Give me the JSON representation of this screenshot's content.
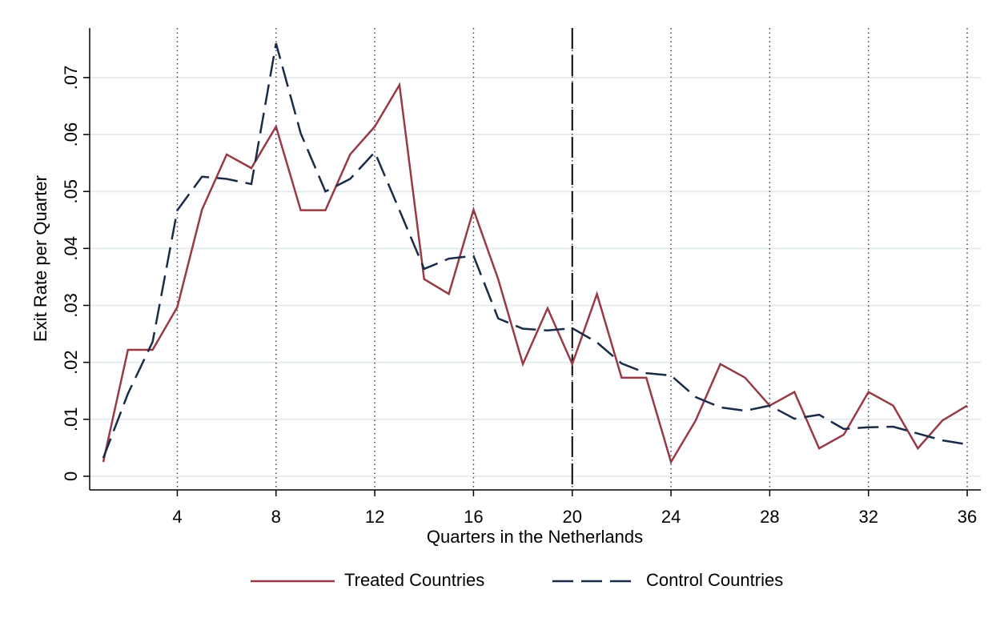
{
  "chart_data": {
    "type": "line",
    "x_label": "Quarters in the Netherlands",
    "y_label": "Exit Rate per Quarter",
    "x": [
      1,
      2,
      3,
      4,
      5,
      6,
      7,
      8,
      9,
      10,
      11,
      12,
      13,
      14,
      15,
      16,
      17,
      18,
      19,
      20,
      21,
      22,
      23,
      24,
      25,
      26,
      27,
      28,
      29,
      30,
      31,
      32,
      33,
      34,
      35,
      36
    ],
    "series": [
      {
        "name": "Treated Countries",
        "color": "#973a45",
        "dash": false,
        "values": [
          0.0025,
          0.0222,
          0.0222,
          0.0297,
          0.0468,
          0.0565,
          0.0541,
          0.0614,
          0.0467,
          0.0467,
          0.0565,
          0.0614,
          0.0687,
          0.0346,
          0.032,
          0.0468,
          0.0346,
          0.0197,
          0.0295,
          0.0197,
          0.032,
          0.0173,
          0.0173,
          0.0025,
          0.0098,
          0.0197,
          0.0173,
          0.0124,
          0.0148,
          0.0049,
          0.0073,
          0.0148,
          0.0124,
          0.0049,
          0.0098,
          0.0124
        ]
      },
      {
        "name": "Control Countries",
        "color": "#1a2b48",
        "dash": true,
        "values": [
          0.0032,
          0.0145,
          0.0236,
          0.0467,
          0.0526,
          0.0522,
          0.0513,
          0.076,
          0.0602,
          0.05,
          0.0522,
          0.0569,
          0.0467,
          0.0364,
          0.0382,
          0.0387,
          0.0277,
          0.0259,
          0.0256,
          0.026,
          0.0235,
          0.0198,
          0.0181,
          0.0177,
          0.0139,
          0.0121,
          0.0115,
          0.0124,
          0.0101,
          0.0108,
          0.0083,
          0.0086,
          0.0087,
          0.0075,
          0.0063,
          0.0056
        ]
      }
    ],
    "xlim": [
      0.45,
      36.55
    ],
    "ylim": [
      -0.0024,
      0.0787
    ],
    "xticks": [
      4,
      8,
      12,
      16,
      20,
      24,
      28,
      32,
      36
    ],
    "yticks": [
      0,
      {
        "value": 0.01,
        "label": ".01"
      },
      {
        "value": 0.02,
        "label": ".02"
      },
      {
        "value": 0.03,
        "label": ".03"
      },
      {
        "value": 0.04,
        "label": ".04"
      },
      {
        "value": 0.05,
        "label": ".05"
      },
      {
        "value": 0.06,
        "label": ".06"
      },
      {
        "value": 0.07,
        "label": ".07"
      }
    ],
    "xline": 20,
    "grid": true,
    "legend": "bottom"
  }
}
